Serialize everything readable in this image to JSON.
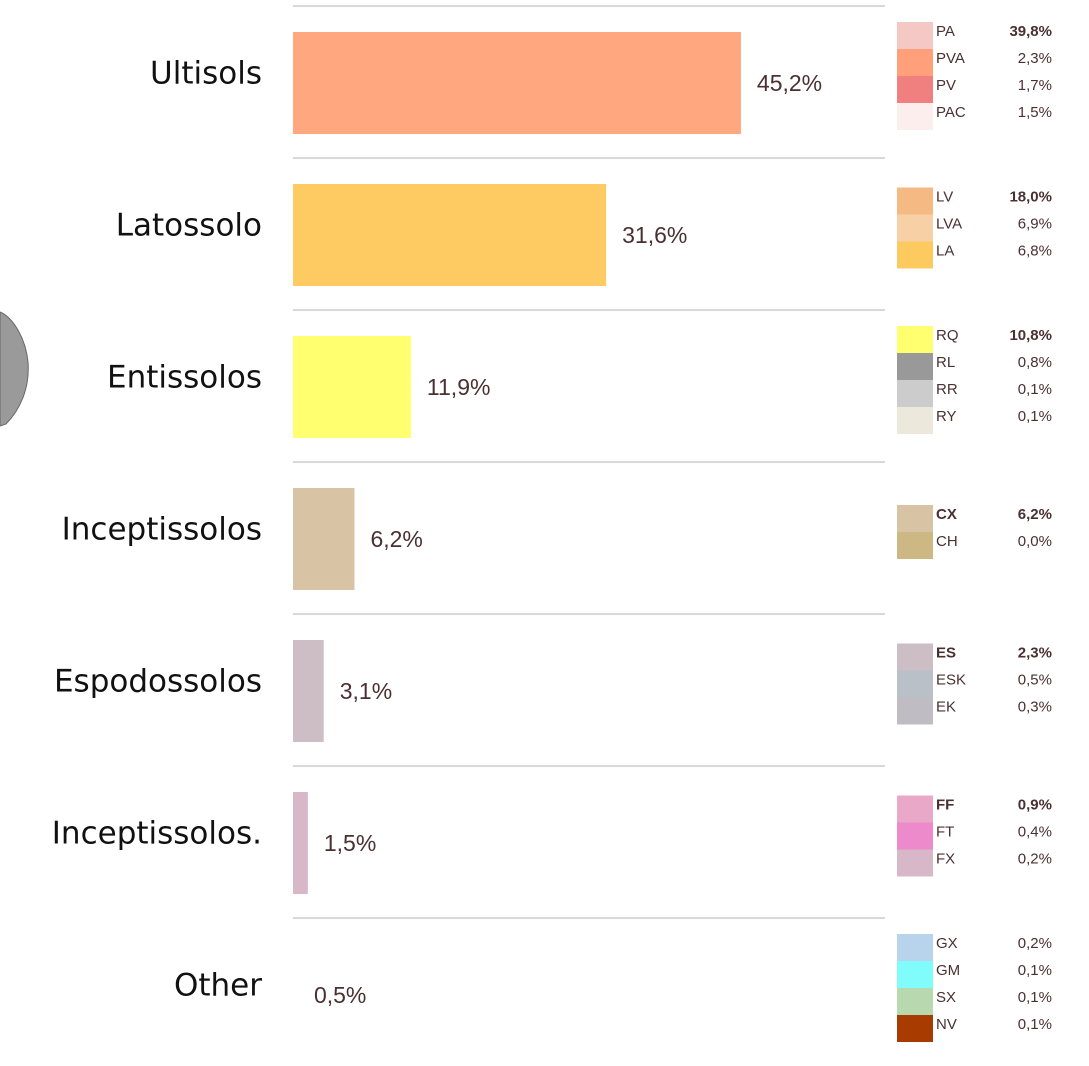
{
  "chart_data": {
    "type": "bar",
    "categories": [
      "Ultisols",
      "Latossolo",
      "Entissolos",
      "Inceptissolos",
      "Espodossolos",
      "Inceptissolos.",
      "Other"
    ],
    "values": [
      45.2,
      31.6,
      11.9,
      6.2,
      3.1,
      1.5,
      0.5
    ],
    "value_labels": [
      "45,2%",
      "31,6%",
      "11,9%",
      "6,2%",
      "3,1%",
      "1,5%",
      "0,5%"
    ],
    "colors": [
      "#ffa880",
      "#fdcb61",
      "#ffff70",
      "#d8c4a4",
      "#cdbec6",
      "#d8b8c8",
      "#ffffff"
    ],
    "breakdown": [
      [
        {
          "code": "PA",
          "color": "#f4c9c5",
          "value": 39.8,
          "value_label": "39,8%",
          "bold_value": true
        },
        {
          "code": "PVA",
          "color": "#ffa07a",
          "value": 2.3,
          "value_label": "2,3%"
        },
        {
          "code": "PV",
          "color": "#f08080",
          "value": 1.7,
          "value_label": "1,7%"
        },
        {
          "code": "PAC",
          "color": "#fbeeec",
          "value": 1.5,
          "value_label": "1,5%"
        }
      ],
      [
        {
          "code": "LV",
          "color": "#f5b983",
          "value": 18.0,
          "value_label": "18,0%",
          "bold_value": true
        },
        {
          "code": "LVA",
          "color": "#f7d1a5",
          "value": 6.9,
          "value_label": "6,9%"
        },
        {
          "code": "LA",
          "color": "#fdca60",
          "value": 6.8,
          "value_label": "6,8%"
        }
      ],
      [
        {
          "code": "RQ",
          "color": "#ffff70",
          "value": 10.8,
          "value_label": "10,8%",
          "bold_value": true
        },
        {
          "code": "RL",
          "color": "#999999",
          "value": 0.8,
          "value_label": "0,8%"
        },
        {
          "code": "RR",
          "color": "#cccccc",
          "value": 0.1,
          "value_label": "0,1%"
        },
        {
          "code": "RY",
          "color": "#ece8dc",
          "value": 0.1,
          "value_label": "0,1%"
        }
      ],
      [
        {
          "code": "CX",
          "color": "#d8c4a4",
          "value": 6.2,
          "value_label": "6,2%",
          "bold_value": true,
          "bold_code": true
        },
        {
          "code": "CH",
          "color": "#cdb783",
          "value": 0.0,
          "value_label": "0,0%"
        }
      ],
      [
        {
          "code": "ES",
          "color": "#cdbec6",
          "value": 2.3,
          "value_label": "2,3%",
          "bold_value": true,
          "bold_code": true
        },
        {
          "code": "ESK",
          "color": "#b9c0c8",
          "value": 0.5,
          "value_label": "0,5%"
        },
        {
          "code": "EK",
          "color": "#c0bcc4",
          "value": 0.3,
          "value_label": "0,3%"
        }
      ],
      [
        {
          "code": "FF",
          "color": "#e9a8c8",
          "value": 0.9,
          "value_label": "0,9%",
          "bold_value": true,
          "bold_code": true
        },
        {
          "code": "FT",
          "color": "#ec8acc",
          "value": 0.4,
          "value_label": "0,4%"
        },
        {
          "code": "FX",
          "color": "#d8b8c8",
          "value": 0.2,
          "value_label": "0,2%"
        }
      ],
      [
        {
          "code": "GX",
          "color": "#b8d4ec",
          "value": 0.2,
          "value_label": "0,2%"
        },
        {
          "code": "GM",
          "color": "#80fcfc",
          "value": 0.1,
          "value_label": "0,1%"
        },
        {
          "code": "SX",
          "color": "#b8d8b0",
          "value": 0.1,
          "value_label": "0,1%"
        },
        {
          "code": "NV",
          "color": "#a83c00",
          "value": 0.1,
          "value_label": "0,1%"
        }
      ]
    ]
  }
}
